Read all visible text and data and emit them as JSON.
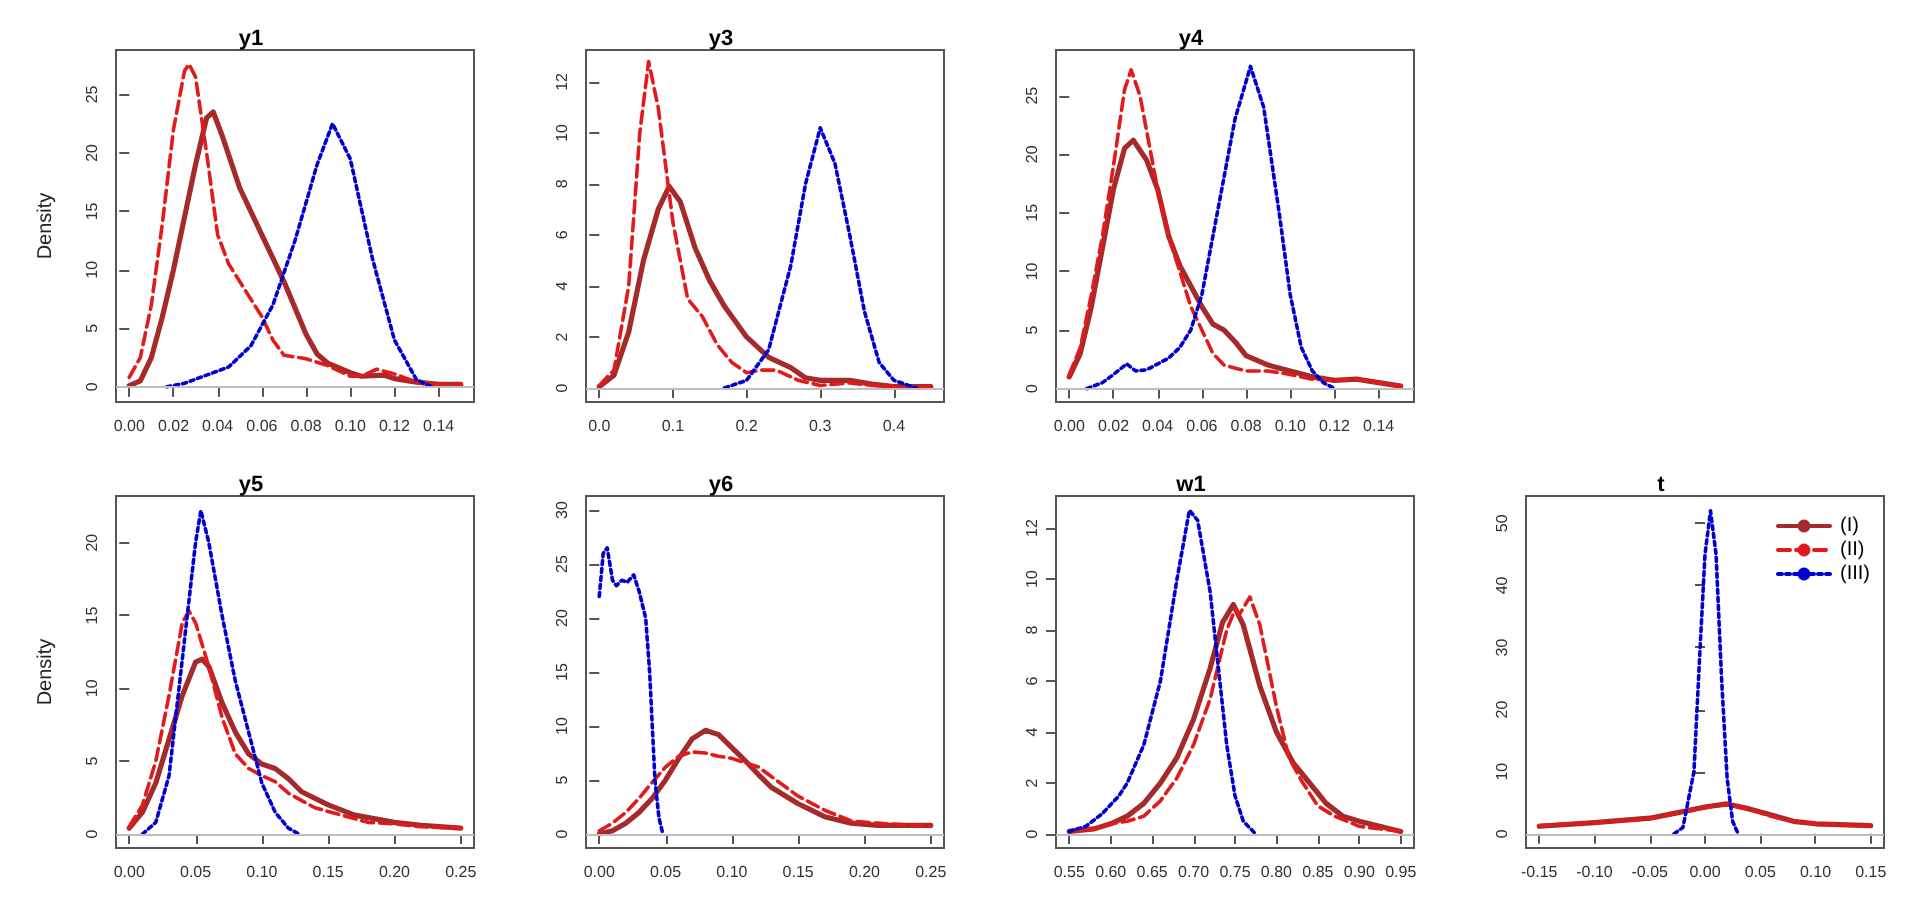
{
  "chart_data": [
    {
      "type": "line",
      "title": "y1",
      "ylabel": "Density",
      "xlim": [
        -0.006,
        0.156
      ],
      "ylim": [
        -1.3,
        28.8
      ],
      "xticks": [
        {
          "value": 0,
          "label": "0.00"
        },
        {
          "value": 0.02,
          "label": "0.02"
        },
        {
          "value": 0.04,
          "label": "0.04"
        },
        {
          "value": 0.06,
          "label": "0.06"
        },
        {
          "value": 0.08,
          "label": "0.08"
        },
        {
          "value": 0.1,
          "label": "0.10"
        },
        {
          "value": 0.12,
          "label": "0.12"
        },
        {
          "value": 0.14,
          "label": "0.14"
        }
      ],
      "yticks": [
        0,
        5,
        10,
        15,
        20,
        25
      ],
      "ref_lines": [
        {
          "axis": "y",
          "value": 0,
          "color": "#bebebe"
        }
      ],
      "series": [
        {
          "color": "#a52a2a",
          "line_style": "solid",
          "x": [
            0,
            0.005,
            0.01,
            0.015,
            0.02,
            0.025,
            0.03,
            0.035,
            0.038,
            0.042,
            0.05,
            0.055,
            0.06,
            0.07,
            0.08,
            0.085,
            0.09,
            0.1,
            0.105,
            0.115,
            0.12,
            0.13,
            0.14,
            0.15
          ],
          "values": [
            0.1,
            0.5,
            2.5,
            6,
            10,
            14.5,
            19,
            23,
            23.5,
            21.5,
            17,
            15,
            13,
            9,
            4.5,
            2.8,
            2,
            1.2,
            0.9,
            1,
            0.7,
            0.4,
            0.2,
            0.2
          ]
        },
        {
          "color": "#e31a1c",
          "line_style": "dashed",
          "x": [
            0,
            0.005,
            0.01,
            0.015,
            0.02,
            0.025,
            0.027,
            0.03,
            0.035,
            0.04,
            0.045,
            0.05,
            0.06,
            0.065,
            0.07,
            0.08,
            0.09,
            0.1,
            0.105,
            0.112,
            0.12,
            0.13,
            0.14,
            0.15
          ],
          "values": [
            0.8,
            2.5,
            7,
            14,
            22,
            27,
            27.6,
            26.5,
            20,
            13,
            10.5,
            9,
            6,
            4,
            2.7,
            2.4,
            1.8,
            0.9,
            0.9,
            1.5,
            1.1,
            0.4,
            0.2,
            0.2
          ]
        },
        {
          "color": "#0000cd",
          "line_style": "dotted",
          "x": [
            0.017,
            0.025,
            0.035,
            0.045,
            0.055,
            0.065,
            0.075,
            0.085,
            0.092,
            0.1,
            0.11,
            0.12,
            0.13,
            0.137
          ],
          "values": [
            0,
            0.3,
            1,
            1.7,
            3.5,
            7,
            12.5,
            19,
            22.5,
            19.5,
            11,
            4,
            0.6,
            0
          ]
        }
      ]
    },
    {
      "type": "line",
      "title": "y3",
      "xlim": [
        -0.018,
        0.468
      ],
      "ylim": [
        -0.55,
        13.25
      ],
      "xticks": [
        {
          "value": 0,
          "label": "0.0"
        },
        0.1,
        0.2,
        0.3,
        0.4
      ],
      "yticks": [
        0,
        2,
        4,
        6,
        8,
        10,
        12
      ],
      "ref_lines": [
        {
          "axis": "y",
          "value": 0,
          "color": "#bebebe"
        }
      ],
      "series": [
        {
          "color": "#a52a2a",
          "line_style": "solid",
          "x": [
            0,
            0.02,
            0.04,
            0.06,
            0.08,
            0.095,
            0.11,
            0.13,
            0.15,
            0.17,
            0.2,
            0.23,
            0.26,
            0.28,
            0.3,
            0.34,
            0.37,
            0.4,
            0.45
          ],
          "values": [
            0.05,
            0.5,
            2.2,
            5,
            7,
            7.9,
            7.3,
            5.5,
            4.2,
            3.2,
            2,
            1.2,
            0.8,
            0.4,
            0.3,
            0.3,
            0.15,
            0.05,
            0.05
          ]
        },
        {
          "color": "#e31a1c",
          "line_style": "dashed",
          "x": [
            0,
            0.02,
            0.04,
            0.055,
            0.067,
            0.08,
            0.1,
            0.12,
            0.14,
            0.16,
            0.18,
            0.2,
            0.22,
            0.24,
            0.27,
            0.3,
            0.34,
            0.37,
            0.4,
            0.45
          ],
          "values": [
            0.1,
            0.7,
            4,
            10,
            12.8,
            11,
            6.5,
            3.5,
            2.8,
            1.7,
            1,
            0.6,
            0.7,
            0.7,
            0.3,
            0.1,
            0.2,
            0.1,
            0.05,
            0.05
          ]
        },
        {
          "color": "#0000cd",
          "line_style": "dotted",
          "x": [
            0.17,
            0.2,
            0.23,
            0.26,
            0.28,
            0.3,
            0.32,
            0.34,
            0.36,
            0.38,
            0.4,
            0.43
          ],
          "values": [
            0,
            0.3,
            1.5,
            4.8,
            8,
            10.2,
            8.8,
            6,
            3,
            1,
            0.3,
            0
          ]
        }
      ]
    },
    {
      "type": "line",
      "title": "y4",
      "xlim": [
        -0.006,
        0.156
      ],
      "ylim": [
        -1.15,
        28.9
      ],
      "xticks": [
        {
          "value": 0,
          "label": "0.00"
        },
        {
          "value": 0.02,
          "label": "0.02"
        },
        {
          "value": 0.04,
          "label": "0.04"
        },
        {
          "value": 0.06,
          "label": "0.06"
        },
        {
          "value": 0.08,
          "label": "0.08"
        },
        {
          "value": 0.1,
          "label": "0.10"
        },
        {
          "value": 0.12,
          "label": "0.12"
        },
        {
          "value": 0.14,
          "label": "0.14"
        }
      ],
      "yticks": [
        0,
        5,
        10,
        15,
        20,
        25
      ],
      "ref_lines": [
        {
          "axis": "y",
          "value": 0,
          "color": "#bebebe"
        }
      ],
      "series": [
        {
          "color": "#a52a2a",
          "line_style": "solid",
          "x": [
            0,
            0.005,
            0.01,
            0.015,
            0.02,
            0.025,
            0.029,
            0.035,
            0.04,
            0.045,
            0.05,
            0.06,
            0.065,
            0.07,
            0.075,
            0.08,
            0.09,
            0.1,
            0.11,
            0.12,
            0.13,
            0.14,
            0.15
          ],
          "values": [
            1,
            3,
            7,
            12,
            17,
            20.5,
            21.2,
            19.5,
            17,
            13,
            10.5,
            7,
            5.5,
            5,
            4,
            2.8,
            2,
            1.5,
            1,
            0.7,
            0.8,
            0.5,
            0.2
          ]
        },
        {
          "color": "#e31a1c",
          "line_style": "dashed",
          "x": [
            0,
            0.005,
            0.01,
            0.015,
            0.02,
            0.025,
            0.028,
            0.032,
            0.04,
            0.045,
            0.05,
            0.055,
            0.06,
            0.065,
            0.07,
            0.08,
            0.09,
            0.1,
            0.11,
            0.12,
            0.13,
            0.14,
            0.15
          ],
          "values": [
            1.2,
            3.5,
            8,
            13,
            19,
            25.5,
            27.2,
            25,
            17,
            13,
            10,
            7,
            5,
            3,
            2,
            1.5,
            1.5,
            1.2,
            0.8,
            0.7,
            0.8,
            0.5,
            0.2
          ]
        },
        {
          "color": "#0000cd",
          "line_style": "dotted",
          "x": [
            0.008,
            0.015,
            0.02,
            0.026,
            0.03,
            0.035,
            0.045,
            0.05,
            0.055,
            0.06,
            0.065,
            0.07,
            0.075,
            0.082,
            0.088,
            0.095,
            0.1,
            0.105,
            0.11,
            0.115,
            0.12
          ],
          "values": [
            0,
            0.5,
            1.2,
            2.1,
            1.5,
            1.6,
            2.6,
            3.5,
            5,
            8,
            13,
            18,
            23,
            27.5,
            24,
            15,
            8,
            3.5,
            1.5,
            0.5,
            0
          ]
        }
      ]
    },
    {
      "type": "line",
      "title": "y5",
      "ylabel": "Density",
      "xlim": [
        -0.01,
        0.26
      ],
      "ylim": [
        -0.96,
        23.2
      ],
      "xticks": [
        {
          "value": 0,
          "label": "0.00"
        },
        {
          "value": 0.05,
          "label": "0.05"
        },
        {
          "value": 0.1,
          "label": "0.10"
        },
        {
          "value": 0.15,
          "label": "0.15"
        },
        {
          "value": 0.2,
          "label": "0.20"
        },
        {
          "value": 0.25,
          "label": "0.25"
        }
      ],
      "yticks": [
        0,
        5,
        10,
        15,
        20
      ],
      "ref_lines": [
        {
          "axis": "y",
          "value": 0,
          "color": "#bebebe"
        }
      ],
      "series": [
        {
          "color": "#a52a2a",
          "line_style": "solid",
          "x": [
            0,
            0.01,
            0.02,
            0.03,
            0.04,
            0.05,
            0.055,
            0.06,
            0.07,
            0.08,
            0.09,
            0.1,
            0.11,
            0.12,
            0.13,
            0.15,
            0.17,
            0.2,
            0.22,
            0.25
          ],
          "values": [
            0.4,
            1.5,
            3.5,
            6.5,
            9.5,
            11.8,
            12,
            11.5,
            9,
            7,
            5.5,
            4.8,
            4.5,
            3.8,
            2.9,
            2,
            1.3,
            0.8,
            0.6,
            0.4
          ]
        },
        {
          "color": "#e31a1c",
          "line_style": "dashed",
          "x": [
            0,
            0.01,
            0.02,
            0.03,
            0.04,
            0.045,
            0.05,
            0.06,
            0.07,
            0.08,
            0.09,
            0.1,
            0.11,
            0.12,
            0.14,
            0.16,
            0.18,
            0.2,
            0.22,
            0.25
          ],
          "values": [
            0.5,
            2,
            5,
            9.5,
            14.5,
            15.3,
            14.5,
            11.5,
            8,
            5.5,
            4.5,
            4,
            3.6,
            2.8,
            1.8,
            1.3,
            0.8,
            0.7,
            0.5,
            0.4
          ]
        },
        {
          "color": "#0000cd",
          "line_style": "dotted",
          "x": [
            0.01,
            0.02,
            0.03,
            0.04,
            0.05,
            0.054,
            0.06,
            0.07,
            0.08,
            0.09,
            0.1,
            0.11,
            0.12,
            0.128
          ],
          "values": [
            0,
            0.8,
            4,
            12,
            20,
            22.2,
            20,
            15,
            10.5,
            7,
            3.5,
            1.5,
            0.4,
            0
          ]
        }
      ]
    },
    {
      "type": "line",
      "title": "y6",
      "xlim": [
        -0.01,
        0.26
      ],
      "ylim": [
        -1.3,
        31.3
      ],
      "xticks": [
        {
          "value": 0,
          "label": "0.00"
        },
        {
          "value": 0.05,
          "label": "0.05"
        },
        {
          "value": 0.1,
          "label": "0.10"
        },
        {
          "value": 0.15,
          "label": "0.15"
        },
        {
          "value": 0.2,
          "label": "0.20"
        },
        {
          "value": 0.25,
          "label": "0.25"
        }
      ],
      "yticks": [
        0,
        5,
        10,
        15,
        20,
        25,
        30
      ],
      "ref_lines": [
        {
          "axis": "y",
          "value": 0,
          "color": "#bebebe"
        }
      ],
      "series": [
        {
          "color": "#a52a2a",
          "line_style": "solid",
          "x": [
            0,
            0.01,
            0.02,
            0.03,
            0.04,
            0.05,
            0.06,
            0.07,
            0.08,
            0.09,
            0.1,
            0.11,
            0.12,
            0.13,
            0.15,
            0.17,
            0.19,
            0.21,
            0.25
          ],
          "values": [
            0,
            0.3,
            1,
            2,
            3.3,
            5,
            7,
            8.8,
            9.6,
            9.2,
            8,
            6.8,
            5.5,
            4.3,
            2.8,
            1.6,
            1,
            0.8,
            0.8
          ]
        },
        {
          "color": "#e31a1c",
          "line_style": "dashed",
          "x": [
            0,
            0.01,
            0.02,
            0.03,
            0.04,
            0.05,
            0.06,
            0.07,
            0.08,
            0.09,
            0.1,
            0.11,
            0.12,
            0.13,
            0.15,
            0.17,
            0.19,
            0.21,
            0.25
          ],
          "values": [
            0.3,
            1,
            2,
            3.3,
            4.8,
            6.2,
            7.2,
            7.6,
            7.5,
            7.2,
            7,
            6.6,
            6.2,
            5.3,
            3.5,
            2.2,
            1.2,
            1,
            0.7
          ]
        },
        {
          "color": "#0000cd",
          "line_style": "dotted",
          "x": [
            0,
            0.003,
            0.006,
            0.01,
            0.013,
            0.017,
            0.021,
            0.026,
            0.03,
            0.035,
            0.038,
            0.04,
            0.042,
            0.045,
            0.048
          ],
          "values": [
            22,
            26,
            26.5,
            23.5,
            23,
            23.5,
            23.3,
            24,
            22.5,
            20,
            15,
            10,
            5,
            1.5,
            0
          ]
        }
      ]
    },
    {
      "type": "line",
      "title": "w1",
      "xlim": [
        0.534,
        0.966
      ],
      "ylim": [
        -0.55,
        13.26
      ],
      "xticks": [
        0.55,
        {
          "value": 0.6,
          "label": "0.60"
        },
        0.65,
        {
          "value": 0.7,
          "label": "0.70"
        },
        0.75,
        {
          "value": 0.8,
          "label": "0.80"
        },
        0.85,
        {
          "value": 0.9,
          "label": "0.90"
        },
        0.95
      ],
      "yticks": [
        0,
        2,
        4,
        6,
        8,
        10,
        12
      ],
      "ref_lines": [
        {
          "axis": "y",
          "value": 0,
          "color": "#bebebe"
        }
      ],
      "series": [
        {
          "color": "#a52a2a",
          "line_style": "solid",
          "x": [
            0.55,
            0.58,
            0.6,
            0.62,
            0.64,
            0.66,
            0.68,
            0.7,
            0.72,
            0.735,
            0.748,
            0.76,
            0.78,
            0.8,
            0.82,
            0.84,
            0.86,
            0.88,
            0.9,
            0.95
          ],
          "values": [
            0.1,
            0.2,
            0.4,
            0.7,
            1.2,
            2,
            3,
            4.5,
            6.5,
            8.3,
            9,
            8.2,
            5.8,
            4,
            2.8,
            2,
            1.2,
            0.7,
            0.5,
            0.1
          ]
        },
        {
          "color": "#e31a1c",
          "line_style": "dashed",
          "x": [
            0.55,
            0.58,
            0.6,
            0.62,
            0.64,
            0.66,
            0.68,
            0.7,
            0.72,
            0.74,
            0.75,
            0.755,
            0.768,
            0.78,
            0.8,
            0.815,
            0.83,
            0.85,
            0.87,
            0.9,
            0.95
          ],
          "values": [
            0.1,
            0.2,
            0.4,
            0.5,
            0.7,
            1.3,
            2.2,
            3.5,
            5.3,
            8,
            8.8,
            8.6,
            9.3,
            8.2,
            5,
            3,
            2.1,
            1.1,
            0.7,
            0.3,
            0.1
          ]
        },
        {
          "color": "#0000cd",
          "line_style": "dotted",
          "x": [
            0.55,
            0.57,
            0.59,
            0.61,
            0.62,
            0.64,
            0.66,
            0.68,
            0.695,
            0.705,
            0.72,
            0.73,
            0.74,
            0.75,
            0.76,
            0.775
          ],
          "values": [
            0.1,
            0.3,
            0.8,
            1.5,
            2,
            3.5,
            6,
            10,
            12.7,
            12.3,
            9.5,
            6.5,
            3.5,
            1.5,
            0.5,
            0
          ]
        }
      ]
    },
    {
      "type": "line",
      "title": "t",
      "xlim": [
        -0.162,
        0.162
      ],
      "ylim": [
        -2.3,
        54.4
      ],
      "legend": "top right",
      "xticks": [
        {
          "value": -0.15,
          "label": "-0.15"
        },
        {
          "value": -0.1,
          "label": "-0.10"
        },
        {
          "value": -0.05,
          "label": "-0.05"
        },
        {
          "value": 0,
          "label": "0.00"
        },
        {
          "value": 0.05,
          "label": "0.05"
        },
        {
          "value": 0.1,
          "label": "0.10"
        },
        {
          "value": 0.15,
          "label": "0.15"
        }
      ],
      "yticks": [
        0,
        10,
        20,
        30,
        40,
        50
      ],
      "ref_lines": [
        {
          "axis": "y",
          "value": 0,
          "color": "#bebebe"
        }
      ],
      "series": [
        {
          "name": "(I)",
          "color": "#a52a2a",
          "line_style": "solid",
          "x": [
            -0.15,
            -0.1,
            -0.05,
            -0.03,
            0,
            0.02,
            0.04,
            0.06,
            0.08,
            0.1,
            0.15
          ],
          "values": [
            1.2,
            1.8,
            2.5,
            3.2,
            4.3,
            4.8,
            4,
            3,
            2,
            1.6,
            1.3
          ]
        },
        {
          "name": "(II)",
          "color": "#e31a1c",
          "line_style": "dashed",
          "x": [
            -0.15,
            -0.1,
            -0.05,
            -0.02,
            0.01,
            0.02,
            0.04,
            0.06,
            0.08,
            0.1,
            0.15
          ],
          "values": [
            1.3,
            1.8,
            2.4,
            3.5,
            4.5,
            4.7,
            4,
            2.8,
            2,
            1.6,
            1.2
          ]
        },
        {
          "name": "(III)",
          "color": "#0000cd",
          "line_style": "dotted",
          "x": [
            -0.028,
            -0.02,
            -0.01,
            -0.005,
            0,
            0.005,
            0.01,
            0.015,
            0.02,
            0.025,
            0.03
          ],
          "values": [
            0,
            1,
            10,
            28,
            45,
            52,
            45,
            25,
            9,
            2,
            0
          ]
        }
      ]
    }
  ]
}
